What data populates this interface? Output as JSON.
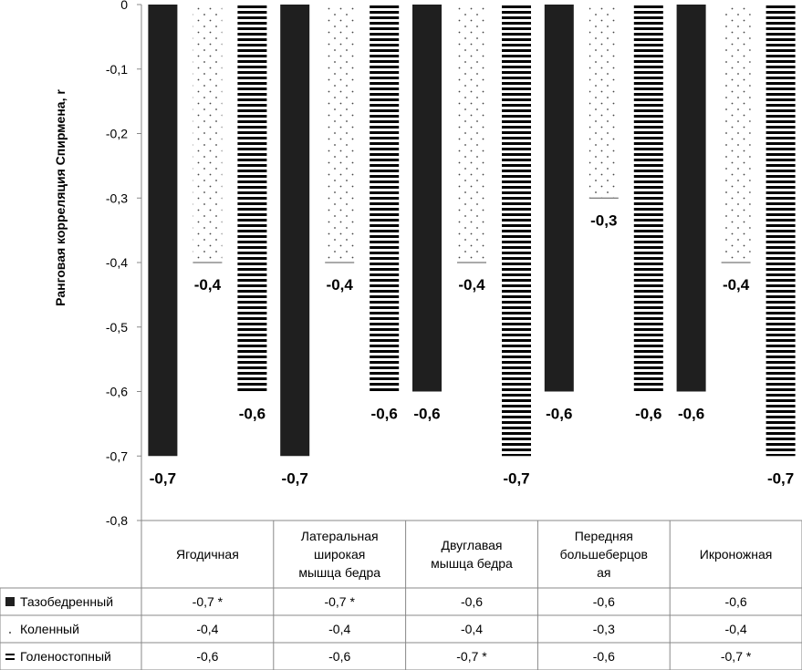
{
  "chart_data": {
    "type": "bar",
    "ylabel": "Ранговая корреляция Спирмена, r",
    "xlabel": "",
    "ylim": [
      -0.8,
      0
    ],
    "ytick_step": 0.1,
    "categories": [
      [
        "Ягодичная"
      ],
      [
        "Латеральная",
        "широкая",
        "мышца бедра"
      ],
      [
        "Двуглавая",
        "мышца бедра"
      ],
      [
        "Передняя",
        "большеберцов",
        "ая"
      ],
      [
        "Икроножная"
      ]
    ],
    "series": [
      {
        "name": "Тазобедренный",
        "pattern": "solid",
        "values": [
          -0.7,
          -0.7,
          -0.6,
          -0.6,
          -0.6
        ],
        "labels": [
          "-0,7",
          "-0,7",
          "-0,6",
          "-0,6",
          "-0,6"
        ],
        "table_text": [
          "-0,7  *",
          "-0,7  *",
          "-0,6",
          "-0,6",
          "-0,6"
        ]
      },
      {
        "name": "Коленный",
        "pattern": "dots",
        "values": [
          -0.4,
          -0.4,
          -0.4,
          -0.3,
          -0.4
        ],
        "labels": [
          "-0,4",
          "-0,4",
          "-0,4",
          "-0,3",
          "-0,4"
        ],
        "table_text": [
          "-0,4",
          "-0,4",
          "-0,4",
          "-0,3",
          "-0,4"
        ]
      },
      {
        "name": "Голеностопный",
        "pattern": "hstripes",
        "values": [
          -0.6,
          -0.6,
          -0.7,
          -0.6,
          -0.7
        ],
        "labels": [
          "-0,6",
          "-0,6",
          "-0,7",
          "-0,6",
          "-0,7"
        ],
        "table_text": [
          "-0,6",
          "-0,6",
          "-0,7  *",
          "-0,6",
          "-0,7  *"
        ]
      }
    ],
    "colors": {
      "bar": "#1f1f1f",
      "grid": "#888888",
      "text": "#000000"
    }
  }
}
